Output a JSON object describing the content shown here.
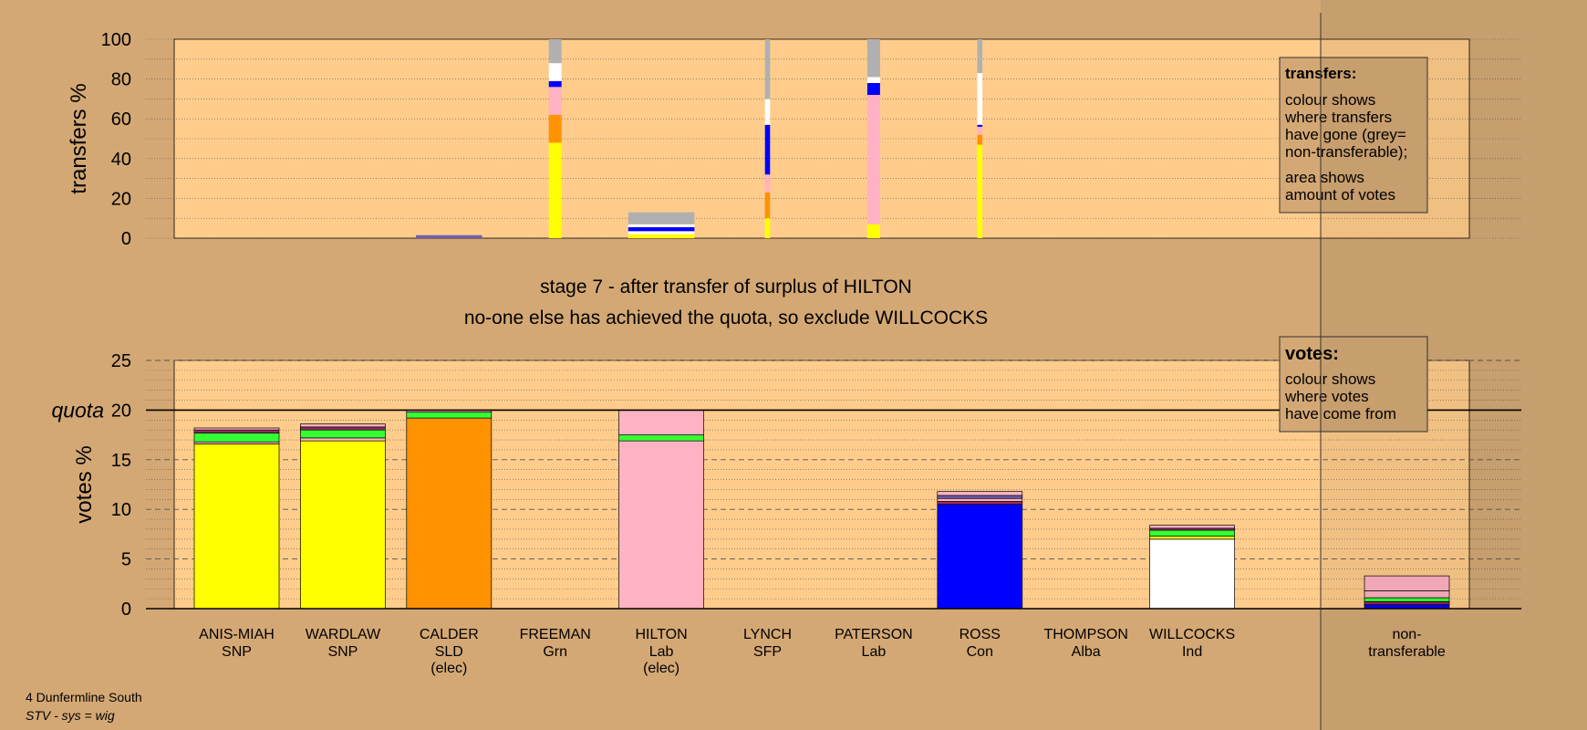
{
  "colors": {
    "background": "#d4a874",
    "plot_area": "#ffcc8c",
    "SNP": "#ffff00",
    "SLD": "#ff9200",
    "Lab": "#ffb2c4",
    "Con": "#0000ff",
    "Ind": "#ffffff",
    "Grn": "#33ff33",
    "Alba": "#7060b0",
    "SFP": "#9a2a60",
    "non_transferable": "#b0b0b0"
  },
  "chart_data": [
    {
      "type": "bar",
      "subtype": "stacked-transfers",
      "ylabel": "transfers %",
      "ylim": [
        0,
        100
      ],
      "yticks": [
        0,
        20,
        40,
        60,
        80,
        100
      ],
      "grid": true,
      "legend": {
        "placement": "top-right",
        "title": "transfers:",
        "text1": "colour shows where transfers have gone (grey= non-transferable);",
        "text2": "area shows amount of votes"
      },
      "categories": [
        "ANIS-MIAH",
        "WARDLAW",
        "CALDER",
        "FREEMAN",
        "HILTON",
        "LYNCH",
        "PATERSON",
        "ROSS",
        "THOMPSON",
        "WILLCOCKS"
      ],
      "columns": [
        {
          "candidate": "CALDER",
          "width_share": 0.78,
          "segments": [
            {
              "color": "Alba",
              "value": 1.5
            }
          ]
        },
        {
          "candidate": "FREEMAN",
          "width_share": 0.15,
          "segments": [
            {
              "color": "SNP",
              "value": 48
            },
            {
              "color": "SLD",
              "value": 14
            },
            {
              "color": "Lab",
              "value": 14
            },
            {
              "color": "Con",
              "value": 3
            },
            {
              "color": "Ind",
              "value": 9
            },
            {
              "color": "non_transferable",
              "value": 12
            }
          ]
        },
        {
          "candidate": "HILTON",
          "width_share": 0.78,
          "segments": [
            {
              "color": "SNP",
              "value": 2
            },
            {
              "color": "Ind",
              "value": 1.5
            },
            {
              "color": "Con",
              "value": 2
            },
            {
              "color": "Ind",
              "value": 1.5
            },
            {
              "color": "non_transferable",
              "value": 6
            }
          ]
        },
        {
          "candidate": "LYNCH",
          "width_share": 0.06,
          "segments": [
            {
              "color": "SNP",
              "value": 10
            },
            {
              "color": "SLD",
              "value": 13
            },
            {
              "color": "Lab",
              "value": 9
            },
            {
              "color": "Con",
              "value": 25
            },
            {
              "color": "Ind",
              "value": 13
            },
            {
              "color": "non_transferable",
              "value": 30
            }
          ]
        },
        {
          "candidate": "PATERSON",
          "width_share": 0.15,
          "segments": [
            {
              "color": "SNP",
              "value": 7
            },
            {
              "color": "Lab",
              "value": 65
            },
            {
              "color": "Con",
              "value": 6
            },
            {
              "color": "Ind",
              "value": 3
            },
            {
              "color": "non_transferable",
              "value": 19
            }
          ]
        },
        {
          "candidate": "ROSS",
          "width_share": 0.06,
          "segments": [
            {
              "color": "SNP",
              "value": 47
            },
            {
              "color": "SLD",
              "value": 5
            },
            {
              "color": "Lab",
              "value": 4
            },
            {
              "color": "Con",
              "value": 1
            },
            {
              "color": "Ind",
              "value": 26
            },
            {
              "color": "non_transferable",
              "value": 17
            }
          ]
        }
      ]
    },
    {
      "type": "bar",
      "subtype": "stacked-votes",
      "ylabel": "votes %",
      "ylim": [
        0,
        25
      ],
      "yticks": [
        0,
        5,
        10,
        15,
        20,
        25
      ],
      "quota": 20,
      "quota_label": "quota",
      "grid": true,
      "legend": {
        "placement": "top-right",
        "title": "votes:",
        "text1": "colour shows where votes have come from"
      },
      "title": "stage 7 - after transfer of surplus of HILTON",
      "subtitle": "no-one else has achieved the quota, so exclude WILLCOCKS",
      "bars": [
        {
          "name": "ANIS-MIAH",
          "party": "SNP",
          "note": "",
          "segments": [
            {
              "color": "SNP",
              "value": 16.6
            },
            {
              "color": "Lab",
              "value": 0.2
            },
            {
              "color": "Grn",
              "value": 0.9
            },
            {
              "color": "SFP",
              "value": 0.3
            },
            {
              "color": "Lab",
              "value": 0.2
            }
          ]
        },
        {
          "name": "WARDLAW",
          "party": "SNP",
          "note": "",
          "segments": [
            {
              "color": "SNP",
              "value": 16.9
            },
            {
              "color": "Lab",
              "value": 0.3
            },
            {
              "color": "Grn",
              "value": 0.8
            },
            {
              "color": "SFP",
              "value": 0.3
            },
            {
              "color": "Lab",
              "value": 0.3
            }
          ]
        },
        {
          "name": "CALDER",
          "party": "SLD",
          "note": "(elec)",
          "segments": [
            {
              "color": "SLD",
              "value": 19.2
            },
            {
              "color": "Grn",
              "value": 0.6
            },
            {
              "color": "Lab",
              "value": 0.2
            }
          ]
        },
        {
          "name": "FREEMAN",
          "party": "Grn",
          "note": "",
          "segments": []
        },
        {
          "name": "HILTON",
          "party": "Lab",
          "note": "(elec)",
          "segments": [
            {
              "color": "Lab",
              "value": 16.9
            },
            {
              "color": "Grn",
              "value": 0.6
            },
            {
              "color": "Lab",
              "value": 2.5
            }
          ]
        },
        {
          "name": "LYNCH",
          "party": "SFP",
          "note": "",
          "segments": []
        },
        {
          "name": "PATERSON",
          "party": "Lab",
          "note": "",
          "segments": []
        },
        {
          "name": "ROSS",
          "party": "Con",
          "note": "",
          "segments": [
            {
              "color": "Con",
              "value": 10.5
            },
            {
              "color": "SFP",
              "value": 0.3
            },
            {
              "color": "Lab",
              "value": 0.3
            },
            {
              "color": "Alba",
              "value": 0.3
            },
            {
              "color": "Lab",
              "value": 0.4
            }
          ]
        },
        {
          "name": "THOMPSON",
          "party": "Alba",
          "note": "",
          "segments": []
        },
        {
          "name": "WILLCOCKS",
          "party": "Ind",
          "note": "",
          "segments": [
            {
              "color": "Ind",
              "value": 7.0
            },
            {
              "color": "SNP",
              "value": 0.3
            },
            {
              "color": "Grn",
              "value": 0.6
            },
            {
              "color": "SFP",
              "value": 0.2
            },
            {
              "color": "Lab",
              "value": 0.3
            }
          ]
        }
      ],
      "non_transferable": {
        "label_line1": "non-",
        "label_line2": "transferable",
        "segments": [
          {
            "color": "Con",
            "value": 0.4
          },
          {
            "color": "SFP",
            "value": 0.3
          },
          {
            "color": "Grn",
            "value": 0.4
          },
          {
            "color": "Lab",
            "value": 0.7
          },
          {
            "color": "Lab",
            "value": 1.5
          }
        ]
      }
    }
  ],
  "footer": {
    "constituency": "4 Dunfermline South",
    "system": "STV - sys = wig"
  }
}
